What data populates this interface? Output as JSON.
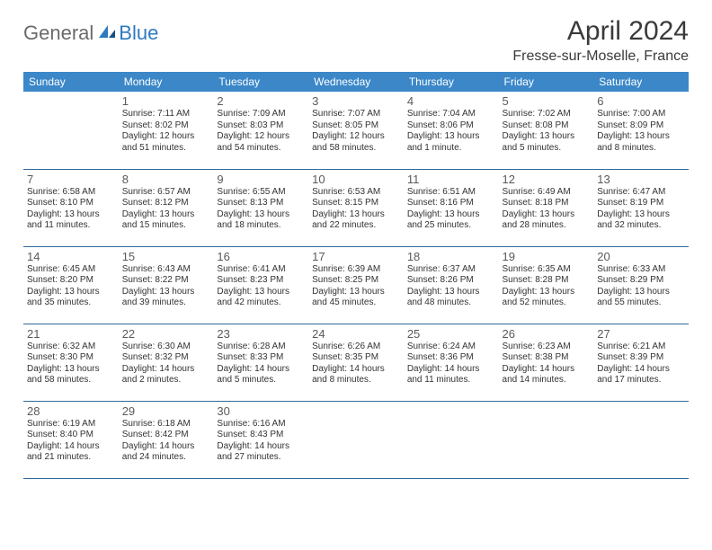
{
  "brand": {
    "word1": "General",
    "word2": "Blue"
  },
  "title": "April 2024",
  "location": "Fresse-sur-Moselle, France",
  "style": {
    "header_bg": "#3b87c8",
    "header_fg": "#ffffff",
    "rule_color": "#30689c",
    "page_bg": "#ffffff",
    "text_color": "#333333",
    "daynum_color": "#5a5a5a",
    "title_fontsize_pt": 22,
    "cell_fontsize_pt": 7.5,
    "columns": 7,
    "rows": 5
  },
  "weekdays": [
    "Sunday",
    "Monday",
    "Tuesday",
    "Wednesday",
    "Thursday",
    "Friday",
    "Saturday"
  ],
  "grid": [
    [
      null,
      {
        "num": "1",
        "sunrise": "Sunrise: 7:11 AM",
        "sunset": "Sunset: 8:02 PM",
        "day1": "Daylight: 12 hours",
        "day2": "and 51 minutes."
      },
      {
        "num": "2",
        "sunrise": "Sunrise: 7:09 AM",
        "sunset": "Sunset: 8:03 PM",
        "day1": "Daylight: 12 hours",
        "day2": "and 54 minutes."
      },
      {
        "num": "3",
        "sunrise": "Sunrise: 7:07 AM",
        "sunset": "Sunset: 8:05 PM",
        "day1": "Daylight: 12 hours",
        "day2": "and 58 minutes."
      },
      {
        "num": "4",
        "sunrise": "Sunrise: 7:04 AM",
        "sunset": "Sunset: 8:06 PM",
        "day1": "Daylight: 13 hours",
        "day2": "and 1 minute."
      },
      {
        "num": "5",
        "sunrise": "Sunrise: 7:02 AM",
        "sunset": "Sunset: 8:08 PM",
        "day1": "Daylight: 13 hours",
        "day2": "and 5 minutes."
      },
      {
        "num": "6",
        "sunrise": "Sunrise: 7:00 AM",
        "sunset": "Sunset: 8:09 PM",
        "day1": "Daylight: 13 hours",
        "day2": "and 8 minutes."
      }
    ],
    [
      {
        "num": "7",
        "sunrise": "Sunrise: 6:58 AM",
        "sunset": "Sunset: 8:10 PM",
        "day1": "Daylight: 13 hours",
        "day2": "and 11 minutes."
      },
      {
        "num": "8",
        "sunrise": "Sunrise: 6:57 AM",
        "sunset": "Sunset: 8:12 PM",
        "day1": "Daylight: 13 hours",
        "day2": "and 15 minutes."
      },
      {
        "num": "9",
        "sunrise": "Sunrise: 6:55 AM",
        "sunset": "Sunset: 8:13 PM",
        "day1": "Daylight: 13 hours",
        "day2": "and 18 minutes."
      },
      {
        "num": "10",
        "sunrise": "Sunrise: 6:53 AM",
        "sunset": "Sunset: 8:15 PM",
        "day1": "Daylight: 13 hours",
        "day2": "and 22 minutes."
      },
      {
        "num": "11",
        "sunrise": "Sunrise: 6:51 AM",
        "sunset": "Sunset: 8:16 PM",
        "day1": "Daylight: 13 hours",
        "day2": "and 25 minutes."
      },
      {
        "num": "12",
        "sunrise": "Sunrise: 6:49 AM",
        "sunset": "Sunset: 8:18 PM",
        "day1": "Daylight: 13 hours",
        "day2": "and 28 minutes."
      },
      {
        "num": "13",
        "sunrise": "Sunrise: 6:47 AM",
        "sunset": "Sunset: 8:19 PM",
        "day1": "Daylight: 13 hours",
        "day2": "and 32 minutes."
      }
    ],
    [
      {
        "num": "14",
        "sunrise": "Sunrise: 6:45 AM",
        "sunset": "Sunset: 8:20 PM",
        "day1": "Daylight: 13 hours",
        "day2": "and 35 minutes."
      },
      {
        "num": "15",
        "sunrise": "Sunrise: 6:43 AM",
        "sunset": "Sunset: 8:22 PM",
        "day1": "Daylight: 13 hours",
        "day2": "and 39 minutes."
      },
      {
        "num": "16",
        "sunrise": "Sunrise: 6:41 AM",
        "sunset": "Sunset: 8:23 PM",
        "day1": "Daylight: 13 hours",
        "day2": "and 42 minutes."
      },
      {
        "num": "17",
        "sunrise": "Sunrise: 6:39 AM",
        "sunset": "Sunset: 8:25 PM",
        "day1": "Daylight: 13 hours",
        "day2": "and 45 minutes."
      },
      {
        "num": "18",
        "sunrise": "Sunrise: 6:37 AM",
        "sunset": "Sunset: 8:26 PM",
        "day1": "Daylight: 13 hours",
        "day2": "and 48 minutes."
      },
      {
        "num": "19",
        "sunrise": "Sunrise: 6:35 AM",
        "sunset": "Sunset: 8:28 PM",
        "day1": "Daylight: 13 hours",
        "day2": "and 52 minutes."
      },
      {
        "num": "20",
        "sunrise": "Sunrise: 6:33 AM",
        "sunset": "Sunset: 8:29 PM",
        "day1": "Daylight: 13 hours",
        "day2": "and 55 minutes."
      }
    ],
    [
      {
        "num": "21",
        "sunrise": "Sunrise: 6:32 AM",
        "sunset": "Sunset: 8:30 PM",
        "day1": "Daylight: 13 hours",
        "day2": "and 58 minutes."
      },
      {
        "num": "22",
        "sunrise": "Sunrise: 6:30 AM",
        "sunset": "Sunset: 8:32 PM",
        "day1": "Daylight: 14 hours",
        "day2": "and 2 minutes."
      },
      {
        "num": "23",
        "sunrise": "Sunrise: 6:28 AM",
        "sunset": "Sunset: 8:33 PM",
        "day1": "Daylight: 14 hours",
        "day2": "and 5 minutes."
      },
      {
        "num": "24",
        "sunrise": "Sunrise: 6:26 AM",
        "sunset": "Sunset: 8:35 PM",
        "day1": "Daylight: 14 hours",
        "day2": "and 8 minutes."
      },
      {
        "num": "25",
        "sunrise": "Sunrise: 6:24 AM",
        "sunset": "Sunset: 8:36 PM",
        "day1": "Daylight: 14 hours",
        "day2": "and 11 minutes."
      },
      {
        "num": "26",
        "sunrise": "Sunrise: 6:23 AM",
        "sunset": "Sunset: 8:38 PM",
        "day1": "Daylight: 14 hours",
        "day2": "and 14 minutes."
      },
      {
        "num": "27",
        "sunrise": "Sunrise: 6:21 AM",
        "sunset": "Sunset: 8:39 PM",
        "day1": "Daylight: 14 hours",
        "day2": "and 17 minutes."
      }
    ],
    [
      {
        "num": "28",
        "sunrise": "Sunrise: 6:19 AM",
        "sunset": "Sunset: 8:40 PM",
        "day1": "Daylight: 14 hours",
        "day2": "and 21 minutes."
      },
      {
        "num": "29",
        "sunrise": "Sunrise: 6:18 AM",
        "sunset": "Sunset: 8:42 PM",
        "day1": "Daylight: 14 hours",
        "day2": "and 24 minutes."
      },
      {
        "num": "30",
        "sunrise": "Sunrise: 6:16 AM",
        "sunset": "Sunset: 8:43 PM",
        "day1": "Daylight: 14 hours",
        "day2": "and 27 minutes."
      },
      null,
      null,
      null,
      null
    ]
  ]
}
